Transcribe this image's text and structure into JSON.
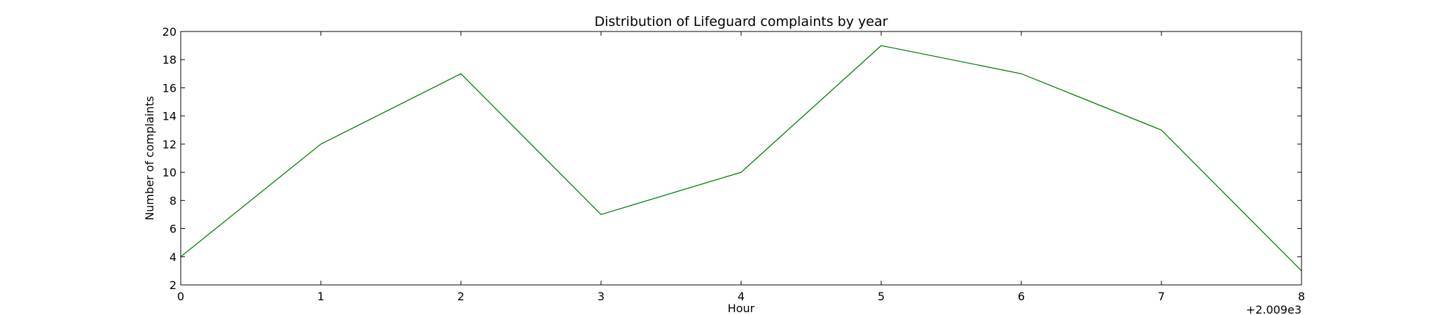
{
  "chart_data": {
    "type": "line",
    "title": "Distribution of  Lifeguard complaints by year",
    "xlabel": "Hour",
    "ylabel": "Number of complaints",
    "x_offset_label": "+2.009e3",
    "x": [
      0,
      1,
      2,
      3,
      4,
      5,
      6,
      7,
      8
    ],
    "xticks": [
      "0",
      "1",
      "2",
      "3",
      "4",
      "5",
      "6",
      "7",
      "8"
    ],
    "yticks": [
      "2",
      "4",
      "6",
      "8",
      "10",
      "12",
      "14",
      "16",
      "18",
      "20"
    ],
    "xlim": [
      0,
      8
    ],
    "ylim": [
      2,
      20
    ],
    "grid": false,
    "series": [
      {
        "values": [
          4,
          12,
          17,
          7,
          10,
          19,
          17,
          13,
          3
        ],
        "color": "#008000"
      }
    ]
  }
}
